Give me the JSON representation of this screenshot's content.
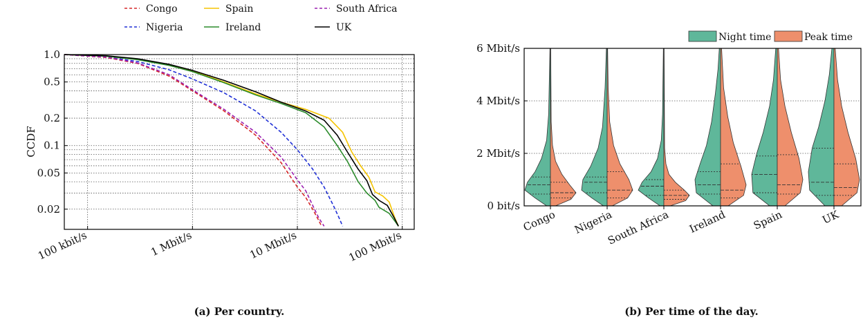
{
  "figure": {
    "caption_a": "(a) Per country.",
    "caption_b": "(b) Per time of the day."
  },
  "chart_data": [
    {
      "type": "line",
      "title": "",
      "ylabel": "CCDF",
      "xlabel": "",
      "x_scale": "log",
      "y_scale": "log",
      "xlim": [
        60,
        130
      ],
      "ylim": [
        0.012,
        1.0
      ],
      "x_ticks": [
        {
          "value": 100,
          "label": "100 kbit/s"
        },
        {
          "value": 1000,
          "label": "1 Mbit/s"
        },
        {
          "value": 10000,
          "label": "10 Mbit/s"
        },
        {
          "value": 100000,
          "label": "100 Mbit/s"
        }
      ],
      "y_ticks": [
        {
          "value": 1.0,
          "label": "1.0"
        },
        {
          "value": 0.5,
          "label": "0.5"
        },
        {
          "value": 0.2,
          "label": "0.2"
        },
        {
          "value": 0.1,
          "label": "0.1"
        },
        {
          "value": 0.05,
          "label": "0.05"
        },
        {
          "value": 0.02,
          "label": "0.02"
        }
      ],
      "x_units": "kbit/s",
      "grid": true,
      "legend_position": "top",
      "series": [
        {
          "name": "Congo",
          "color": "#d62728",
          "dash": "dashed",
          "points": [
            [
              60,
              1.0
            ],
            [
              150,
              0.93
            ],
            [
              300,
              0.8
            ],
            [
              600,
              0.58
            ],
            [
              1000,
              0.4
            ],
            [
              2000,
              0.24
            ],
            [
              4000,
              0.13
            ],
            [
              7000,
              0.065
            ],
            [
              10000,
              0.035
            ],
            [
              12000,
              0.027
            ],
            [
              14000,
              0.02
            ],
            [
              16000,
              0.015
            ],
            [
              17000,
              0.013
            ]
          ]
        },
        {
          "name": "Nigeria",
          "color": "#1f2fd6",
          "dash": "dashed",
          "points": [
            [
              60,
              1.0
            ],
            [
              150,
              0.94
            ],
            [
              300,
              0.84
            ],
            [
              600,
              0.68
            ],
            [
              1000,
              0.54
            ],
            [
              2000,
              0.38
            ],
            [
              4000,
              0.24
            ],
            [
              7000,
              0.14
            ],
            [
              10000,
              0.09
            ],
            [
              14000,
              0.055
            ],
            [
              18000,
              0.035
            ],
            [
              22000,
              0.022
            ],
            [
              25000,
              0.016
            ],
            [
              27000,
              0.013
            ]
          ]
        },
        {
          "name": "Spain",
          "color": "#f5c400",
          "dash": "solid",
          "points": [
            [
              60,
              1.0
            ],
            [
              150,
              0.96
            ],
            [
              300,
              0.89
            ],
            [
              600,
              0.77
            ],
            [
              1000,
              0.66
            ],
            [
              2000,
              0.5
            ],
            [
              4000,
              0.37
            ],
            [
              7000,
              0.3
            ],
            [
              12000,
              0.25
            ],
            [
              20000,
              0.2
            ],
            [
              27000,
              0.14
            ],
            [
              33000,
              0.085
            ],
            [
              40000,
              0.06
            ],
            [
              48000,
              0.045
            ],
            [
              55000,
              0.031
            ],
            [
              65000,
              0.028
            ],
            [
              75000,
              0.024
            ],
            [
              85000,
              0.016
            ],
            [
              92000,
              0.013
            ]
          ]
        },
        {
          "name": "Ireland",
          "color": "#2a8a2a",
          "dash": "solid",
          "points": [
            [
              60,
              1.0
            ],
            [
              150,
              0.96
            ],
            [
              300,
              0.88
            ],
            [
              600,
              0.76
            ],
            [
              1000,
              0.65
            ],
            [
              2000,
              0.49
            ],
            [
              4000,
              0.36
            ],
            [
              7000,
              0.29
            ],
            [
              12000,
              0.23
            ],
            [
              18000,
              0.16
            ],
            [
              24000,
              0.1
            ],
            [
              30000,
              0.067
            ],
            [
              38000,
              0.04
            ],
            [
              46000,
              0.03
            ],
            [
              55000,
              0.025
            ],
            [
              60000,
              0.021
            ],
            [
              75000,
              0.018
            ],
            [
              88000,
              0.014
            ],
            [
              92000,
              0.013
            ]
          ]
        },
        {
          "name": "South Africa",
          "color": "#9a1fb0",
          "dash": "dashed",
          "points": [
            [
              60,
              1.0
            ],
            [
              150,
              0.94
            ],
            [
              300,
              0.81
            ],
            [
              600,
              0.6
            ],
            [
              1000,
              0.41
            ],
            [
              2000,
              0.25
            ],
            [
              4000,
              0.14
            ],
            [
              7000,
              0.075
            ],
            [
              10000,
              0.042
            ],
            [
              12000,
              0.032
            ],
            [
              14000,
              0.022
            ],
            [
              16000,
              0.016
            ],
            [
              18000,
              0.013
            ]
          ]
        },
        {
          "name": "UK",
          "color": "#000000",
          "dash": "solid",
          "points": [
            [
              60,
              1.0
            ],
            [
              150,
              0.97
            ],
            [
              300,
              0.9
            ],
            [
              600,
              0.78
            ],
            [
              1000,
              0.67
            ],
            [
              2000,
              0.52
            ],
            [
              4000,
              0.39
            ],
            [
              7000,
              0.3
            ],
            [
              12000,
              0.24
            ],
            [
              18000,
              0.19
            ],
            [
              24000,
              0.13
            ],
            [
              30000,
              0.085
            ],
            [
              38000,
              0.055
            ],
            [
              46000,
              0.041
            ],
            [
              52000,
              0.029
            ],
            [
              60000,
              0.025
            ],
            [
              72000,
              0.022
            ],
            [
              84000,
              0.016
            ],
            [
              92000,
              0.013
            ]
          ]
        }
      ]
    },
    {
      "type": "violin",
      "title": "",
      "ylabel": "",
      "y_units": "Mbit/s",
      "ylim": [
        0,
        6
      ],
      "y_ticks": [
        {
          "value": 0,
          "label": "0 bit/s"
        },
        {
          "value": 2,
          "label": "2 Mbit/s"
        },
        {
          "value": 4,
          "label": "4 Mbit/s"
        },
        {
          "value": 6,
          "label": "6 Mbit/s"
        }
      ],
      "categories": [
        "Congo",
        "Nigeria",
        "South Africa",
        "Ireland",
        "Spain",
        "UK"
      ],
      "grid": true,
      "legend_position": "top-right",
      "series": [
        {
          "name": "Night time",
          "color": "#5fb79a",
          "quartiles": [
            [
              0.45,
              0.8,
              1.1
            ],
            [
              0.5,
              0.9,
              1.1
            ],
            [
              0.4,
              0.75,
              1.0
            ],
            [
              0.45,
              0.8,
              1.3
            ],
            [
              0.5,
              1.2,
              1.9
            ],
            [
              0.4,
              0.9,
              2.2
            ]
          ],
          "profile": [
            [
              [
                0,
                0.15
              ],
              [
                0.3,
                0.6
              ],
              [
                0.6,
                1.0
              ],
              [
                0.9,
                0.9
              ],
              [
                1.3,
                0.6
              ],
              [
                1.8,
                0.35
              ],
              [
                2.5,
                0.15
              ],
              [
                3.5,
                0.07
              ],
              [
                6,
                0.02
              ]
            ],
            [
              [
                0,
                0.15
              ],
              [
                0.3,
                0.6
              ],
              [
                0.6,
                1.0
              ],
              [
                1.0,
                0.95
              ],
              [
                1.5,
                0.65
              ],
              [
                2.2,
                0.35
              ],
              [
                3.0,
                0.18
              ],
              [
                4.5,
                0.08
              ],
              [
                6,
                0.03
              ]
            ],
            [
              [
                0,
                0.15
              ],
              [
                0.3,
                0.6
              ],
              [
                0.6,
                1.0
              ],
              [
                0.9,
                0.85
              ],
              [
                1.3,
                0.5
              ],
              [
                1.8,
                0.25
              ],
              [
                2.5,
                0.1
              ],
              [
                3.5,
                0.05
              ],
              [
                6,
                0.02
              ]
            ],
            [
              [
                0,
                0.3
              ],
              [
                0.5,
                0.95
              ],
              [
                1.0,
                1.0
              ],
              [
                1.6,
                0.8
              ],
              [
                2.3,
                0.55
              ],
              [
                3.2,
                0.35
              ],
              [
                4.3,
                0.2
              ],
              [
                5.2,
                0.1
              ],
              [
                6,
                0.05
              ]
            ],
            [
              [
                0,
                0.3
              ],
              [
                0.5,
                0.95
              ],
              [
                1.2,
                1.0
              ],
              [
                2.0,
                0.8
              ],
              [
                2.8,
                0.55
              ],
              [
                3.8,
                0.3
              ],
              [
                4.8,
                0.15
              ],
              [
                6,
                0.06
              ]
            ],
            [
              [
                0,
                0.35
              ],
              [
                0.6,
                0.95
              ],
              [
                1.3,
                1.0
              ],
              [
                2.2,
                0.85
              ],
              [
                3.0,
                0.6
              ],
              [
                4.0,
                0.35
              ],
              [
                5.0,
                0.18
              ],
              [
                6,
                0.08
              ]
            ]
          ]
        },
        {
          "name": "Peak time",
          "color": "#ee8f6c",
          "quartiles": [
            [
              0.3,
              0.5,
              0.9
            ],
            [
              0.3,
              0.6,
              1.3
            ],
            [
              0.25,
              0.4,
              0.6
            ],
            [
              0.3,
              0.6,
              1.6
            ],
            [
              0.45,
              0.8,
              1.95
            ],
            [
              0.4,
              0.7,
              1.6
            ]
          ],
          "profile": [
            [
              [
                0,
                0.2
              ],
              [
                0.25,
                0.8
              ],
              [
                0.5,
                1.0
              ],
              [
                0.8,
                0.75
              ],
              [
                1.2,
                0.45
              ],
              [
                1.7,
                0.2
              ],
              [
                2.3,
                0.08
              ],
              [
                3.2,
                0.03
              ],
              [
                6,
                0.01
              ]
            ],
            [
              [
                0,
                0.2
              ],
              [
                0.3,
                0.8
              ],
              [
                0.6,
                1.0
              ],
              [
                1.0,
                0.85
              ],
              [
                1.6,
                0.5
              ],
              [
                2.3,
                0.25
              ],
              [
                3.2,
                0.1
              ],
              [
                4.5,
                0.04
              ],
              [
                6,
                0.02
              ]
            ],
            [
              [
                0,
                0.25
              ],
              [
                0.2,
                0.85
              ],
              [
                0.4,
                1.0
              ],
              [
                0.6,
                0.8
              ],
              [
                0.9,
                0.45
              ],
              [
                1.2,
                0.2
              ],
              [
                1.6,
                0.08
              ],
              [
                2.2,
                0.03
              ],
              [
                6,
                0.01
              ]
            ],
            [
              [
                0,
                0.3
              ],
              [
                0.4,
                0.9
              ],
              [
                0.8,
                1.0
              ],
              [
                1.5,
                0.8
              ],
              [
                2.4,
                0.5
              ],
              [
                3.4,
                0.28
              ],
              [
                4.5,
                0.12
              ],
              [
                6,
                0.04
              ]
            ],
            [
              [
                0,
                0.3
              ],
              [
                0.5,
                0.9
              ],
              [
                1.0,
                1.0
              ],
              [
                1.8,
                0.85
              ],
              [
                2.8,
                0.55
              ],
              [
                3.8,
                0.3
              ],
              [
                4.8,
                0.13
              ],
              [
                6,
                0.05
              ]
            ],
            [
              [
                0,
                0.3
              ],
              [
                0.5,
                0.9
              ],
              [
                1.0,
                1.0
              ],
              [
                1.8,
                0.85
              ],
              [
                2.8,
                0.55
              ],
              [
                3.8,
                0.3
              ],
              [
                4.8,
                0.14
              ],
              [
                6,
                0.05
              ]
            ]
          ]
        }
      ]
    }
  ]
}
